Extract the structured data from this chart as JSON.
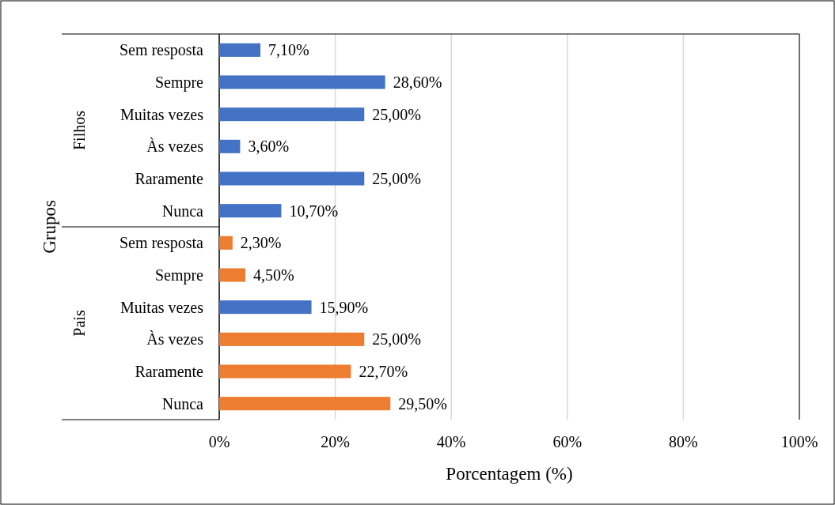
{
  "chart_data": {
    "type": "bar",
    "orientation": "horizontal",
    "xlabel": "Porcentagem (%)",
    "ylabel": "Grupos",
    "annotations": [
      "Filhos",
      "Pais"
    ],
    "categories": [
      "Sem resposta",
      "Sempre",
      "Muitas vezes",
      "Às vezes",
      "Raramente",
      "Nunca",
      "Sem resposta",
      "Sempre",
      "Muitas vezes",
      "Às vezes",
      "Raramente",
      "Nunca"
    ],
    "values": [
      7.1,
      28.6,
      25.0,
      3.6,
      25.0,
      10.7,
      2.3,
      4.5,
      15.9,
      25.0,
      22.7,
      29.5
    ],
    "value_labels": [
      "7,10%",
      "28,60%",
      "25,00%",
      "3,60%",
      "25,00%",
      "10,70%",
      "2,30%",
      "4,50%",
      "15,90%",
      "25,00%",
      "22,70%",
      "29,50%"
    ],
    "colors": [
      "#4472c4",
      "#4472c4",
      "#4472c4",
      "#4472c4",
      "#4472c4",
      "#4472c4",
      "#ed7d31",
      "#ed7d31",
      "#4472c4",
      "#ed7d31",
      "#ed7d31",
      "#ed7d31"
    ],
    "xlim": [
      0,
      100
    ],
    "xticks": [
      {
        "value": 0,
        "label": "0%"
      },
      {
        "value": 20,
        "label": "20%"
      },
      {
        "value": 40,
        "label": "40%"
      },
      {
        "value": 60,
        "label": "60%"
      },
      {
        "value": 80,
        "label": "80%"
      },
      {
        "value": 100,
        "label": "100%"
      }
    ],
    "grid": "x"
  }
}
